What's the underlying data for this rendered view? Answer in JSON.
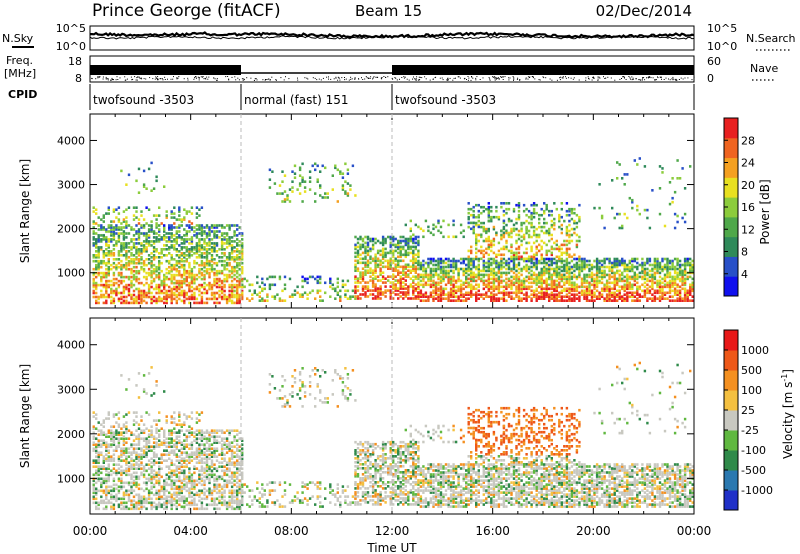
{
  "header": {
    "station": "Prince George (fitACF)",
    "beam": "Beam 15",
    "date": "02/Dec/2014"
  },
  "noise_panel": {
    "left_label": "N.Sky",
    "right_label": "N.Search",
    "ticks_left": [
      "10^5",
      "10^0"
    ],
    "ticks_right": [
      "10^5",
      "10^0"
    ]
  },
  "freq_panel": {
    "left_label_1": "Freq.",
    "left_label_2": "[MHz]",
    "right_label": "Nave",
    "ticks_left": [
      "18",
      "8"
    ],
    "ticks_right": [
      "60",
      "0"
    ]
  },
  "cpid_panel": {
    "label": "CPID",
    "segments": [
      {
        "name": "twofsound -3503",
        "start_hour": 0,
        "end_hour": 6
      },
      {
        "name": "normal (fast) 151",
        "start_hour": 6,
        "end_hour": 12
      },
      {
        "name": "twofsound -3503",
        "start_hour": 12,
        "end_hour": 24
      }
    ]
  },
  "chart_data": [
    {
      "type": "heatmap",
      "title": "Power",
      "ylabel": "Slant Range [km]",
      "xlabel": "",
      "xlim": [
        0,
        24
      ],
      "ylim": [
        200,
        4600
      ],
      "yticks": [
        "1000",
        "2000",
        "3000",
        "4000"
      ],
      "colorbar": {
        "label": "Power [dB]",
        "ticks": [
          "28",
          "24",
          "20",
          "16",
          "12",
          "8",
          "4"
        ],
        "range": [
          0,
          30
        ],
        "colors": [
          "#1010ee",
          "#2850c8",
          "#2f8a5a",
          "#4fa84a",
          "#8ccc3c",
          "#e8e020",
          "#f4a020",
          "#ef6420",
          "#e82020"
        ]
      }
    },
    {
      "type": "heatmap",
      "title": "Velocity",
      "ylabel": "Slant Range [km]",
      "xlabel": "Time UT",
      "xlim": [
        0,
        24
      ],
      "ylim": [
        200,
        4600
      ],
      "xticks": [
        "00:00",
        "04:00",
        "08:00",
        "12:00",
        "16:00",
        "20:00",
        "00:00"
      ],
      "yticks": [
        "1000",
        "2000",
        "3000",
        "4000"
      ],
      "colorbar": {
        "label": "Velocity [m s",
        "label_sup": "-1",
        "label_end": "]",
        "ticks": [
          "1000",
          "500",
          "100",
          "25",
          "-25",
          "-100",
          "-500",
          "-1000"
        ],
        "colors": [
          "#2030c8",
          "#2a78b0",
          "#2f8a4a",
          "#60b840",
          "#c8c8c0",
          "#f4c040",
          "#f49020",
          "#ee5818",
          "#e81818"
        ]
      }
    }
  ]
}
